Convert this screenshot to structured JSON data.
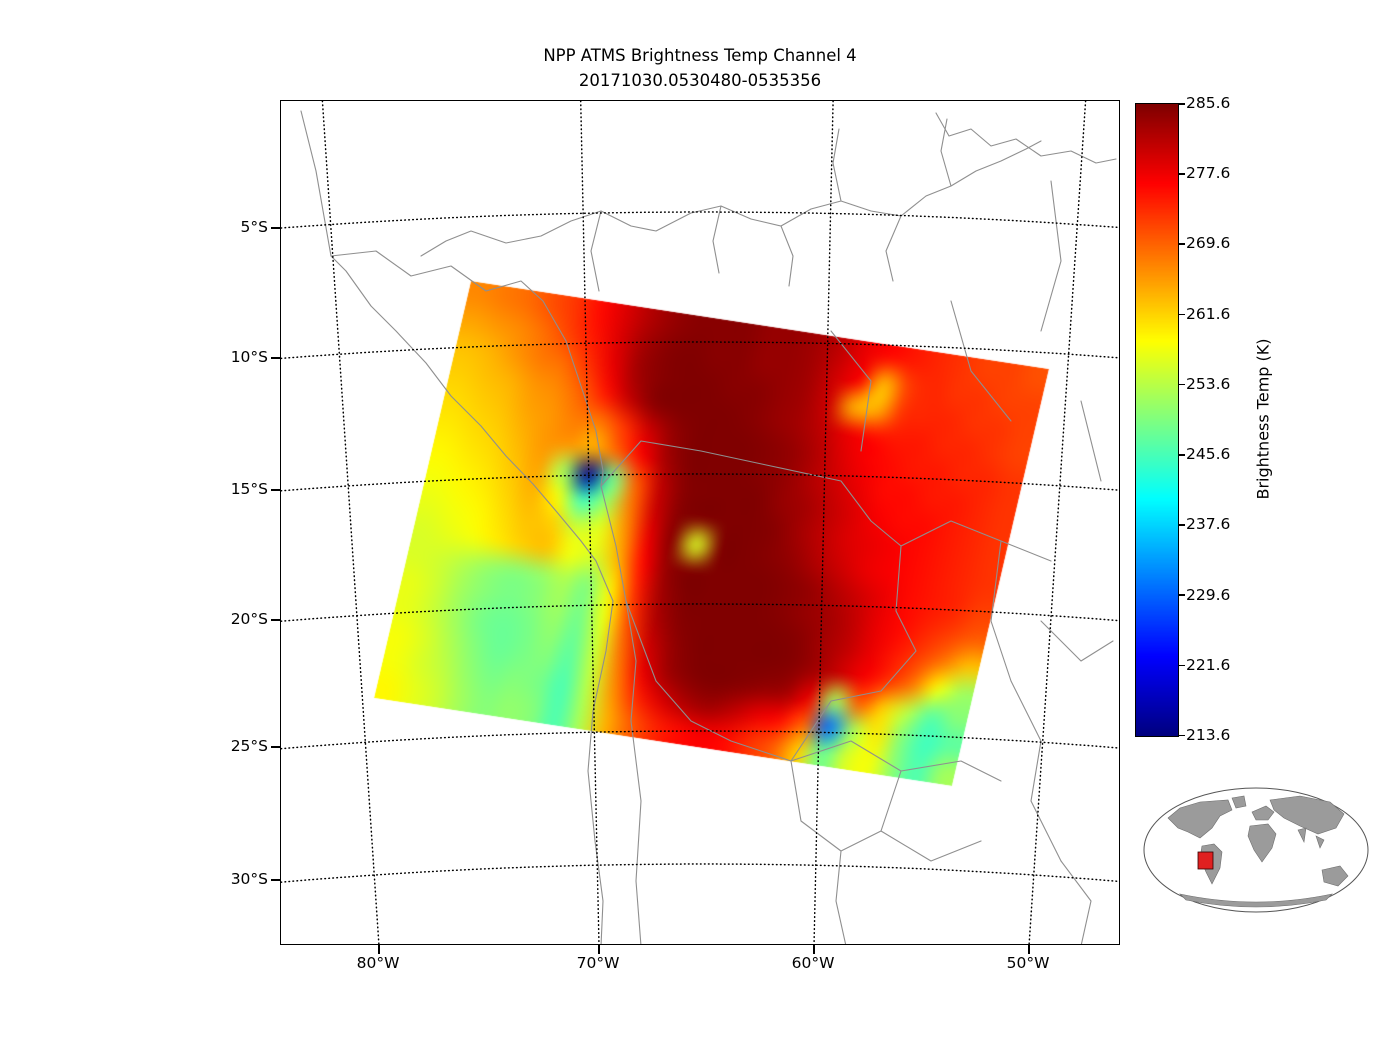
{
  "chart_data": {
    "type": "heatmap",
    "title": "NPP ATMS Brightness Temp Channel 4",
    "subtitle": "20171030.0530480-0535356",
    "colorbar_label": "Brightness Temp (K)",
    "colormap": "jet",
    "units": "K",
    "vmin": 213.6,
    "vmax": 285.6,
    "colorbar_ticks": [
      285.6,
      277.6,
      269.6,
      261.6,
      253.6,
      245.6,
      237.6,
      229.6,
      221.6,
      213.6
    ],
    "lat_gridlines": [
      "5°S",
      "10°S",
      "15°S",
      "20°S",
      "25°S",
      "30°S"
    ],
    "lon_gridlines": [
      "80°W",
      "70°W",
      "60°W",
      "50°W"
    ],
    "swath_grid": {
      "cols": 24,
      "rows": 16,
      "units": "K",
      "values_K": [
        [
          267,
          268,
          269,
          271,
          273,
          276,
          279,
          282,
          284,
          285,
          285,
          285,
          284,
          284,
          283,
          281,
          278,
          276,
          275,
          274,
          273,
          272,
          272,
          271
        ],
        [
          265,
          266,
          267,
          269,
          272,
          275,
          279,
          283,
          285,
          286,
          285,
          285,
          284,
          284,
          283,
          280,
          277,
          263,
          272,
          274,
          273,
          273,
          272,
          272
        ],
        [
          263,
          264,
          266,
          268,
          269,
          273,
          278,
          283,
          285,
          286,
          286,
          285,
          285,
          284,
          283,
          280,
          264,
          264,
          273,
          274,
          274,
          273,
          273,
          272
        ],
        [
          262,
          263,
          264,
          266,
          267,
          270,
          275,
          281,
          285,
          286,
          286,
          286,
          285,
          284,
          283,
          281,
          278,
          276,
          275,
          275,
          274,
          274,
          273,
          272
        ],
        [
          261,
          262,
          263,
          265,
          266,
          268,
          268,
          273,
          280,
          284,
          286,
          286,
          286,
          285,
          284,
          282,
          279,
          277,
          276,
          275,
          275,
          274,
          274,
          273
        ],
        [
          260,
          261,
          262,
          264,
          266,
          266,
          264,
          270,
          277,
          283,
          286,
          286,
          286,
          285,
          284,
          282,
          280,
          278,
          276,
          276,
          275,
          275,
          274,
          273
        ],
        [
          259,
          260,
          261,
          263,
          265,
          252,
          215,
          248,
          270,
          281,
          285,
          286,
          286,
          286,
          284,
          283,
          281,
          279,
          277,
          276,
          276,
          275,
          274,
          273
        ],
        [
          258,
          259,
          260,
          262,
          264,
          258,
          245,
          252,
          268,
          280,
          285,
          286,
          286,
          286,
          285,
          283,
          281,
          279,
          278,
          277,
          276,
          275,
          274,
          273
        ],
        [
          257,
          258,
          259,
          261,
          263,
          262,
          255,
          257,
          266,
          278,
          285,
          256,
          286,
          286,
          285,
          284,
          282,
          280,
          278,
          277,
          276,
          275,
          274,
          273
        ],
        [
          256,
          257,
          258,
          260,
          262,
          263,
          258,
          256,
          264,
          276,
          284,
          286,
          287,
          287,
          286,
          285,
          284,
          282,
          280,
          278,
          276,
          275,
          274,
          272
        ],
        [
          256,
          255,
          253,
          251,
          250,
          251,
          253,
          250,
          260,
          274,
          283,
          286,
          287,
          287,
          286,
          285,
          284,
          283,
          281,
          278,
          276,
          274,
          272,
          270
        ],
        [
          257,
          255,
          252,
          250,
          249,
          250,
          252,
          249,
          258,
          272,
          282,
          285,
          286,
          287,
          286,
          286,
          285,
          283,
          281,
          278,
          275,
          272,
          268,
          263
        ],
        [
          257,
          255,
          252,
          249,
          248,
          249,
          251,
          248,
          256,
          270,
          280,
          284,
          286,
          286,
          286,
          286,
          285,
          283,
          280,
          277,
          273,
          268,
          258,
          252
        ],
        [
          258,
          256,
          253,
          250,
          248,
          249,
          250,
          247,
          255,
          268,
          278,
          283,
          285,
          286,
          285,
          284,
          283,
          278,
          252,
          270,
          262,
          254,
          247,
          250
        ],
        [
          258,
          256,
          254,
          251,
          249,
          250,
          249,
          246,
          254,
          266,
          274,
          279,
          282,
          283,
          281,
          278,
          276,
          270,
          230,
          252,
          260,
          250,
          245,
          247
        ],
        [
          259,
          257,
          255,
          252,
          250,
          251,
          250,
          246,
          253,
          264,
          270,
          274,
          276,
          277,
          276,
          273,
          270,
          262,
          248,
          256,
          258,
          250,
          246,
          252
        ]
      ]
    }
  },
  "inset": {
    "marker_color": "#e02020"
  }
}
